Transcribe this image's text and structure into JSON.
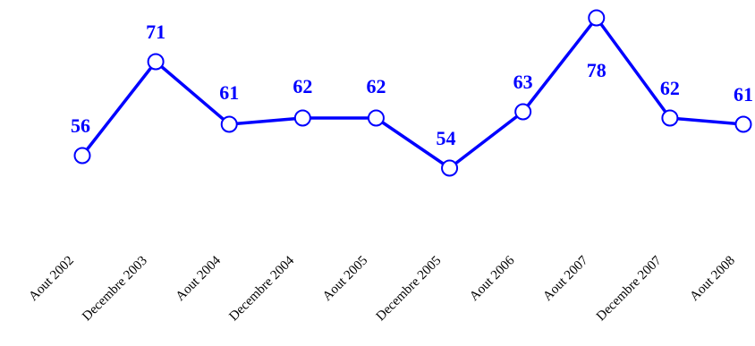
{
  "chart_data": {
    "type": "line",
    "categories": [
      "Aout 2002",
      "Decembre 2003",
      "Aout 2004",
      "Decembre 2004",
      "Aout 2005",
      "Decembre 2005",
      "Aout 2006",
      "Aout 2007",
      "Decembre 2007",
      "Aout 2008"
    ],
    "series": [
      {
        "values": [
          56,
          71,
          61,
          62,
          62,
          54,
          63,
          78,
          62,
          61
        ],
        "color": "#0000ff"
      }
    ],
    "title": "",
    "xlabel": "",
    "ylabel": "",
    "ylim": [
      50,
      80
    ],
    "grid": false,
    "legend": "none",
    "data_labels": true
  }
}
